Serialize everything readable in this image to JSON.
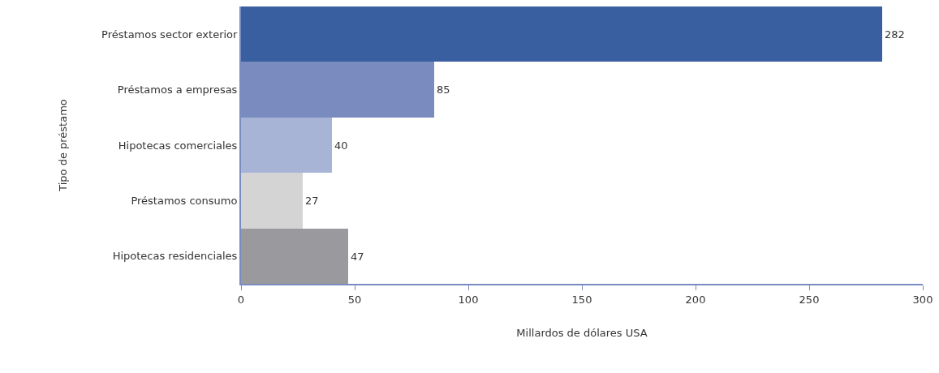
{
  "chart_data": {
    "type": "bar",
    "orientation": "horizontal",
    "xlabel": "Millardos de dólares USA",
    "ylabel": "Tipo de préstamo",
    "categories": [
      "Préstamos sector exterior",
      "Préstamos a empresas",
      "Hipotecas comerciales",
      "Préstamos consumo",
      "Hipotecas residenciales"
    ],
    "values": [
      282,
      85,
      40,
      27,
      47
    ],
    "colors": [
      "#3a5fa0",
      "#7a8bbf",
      "#a8b4d6",
      "#d4d4d4",
      "#9a9a9e"
    ],
    "xlim": [
      0,
      300
    ],
    "xticks": [
      0,
      50,
      100,
      150,
      200,
      250,
      300
    ],
    "data_labels": true
  }
}
